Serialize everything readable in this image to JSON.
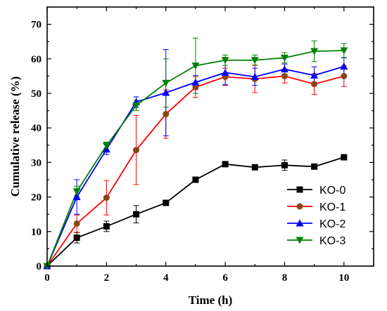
{
  "chart_data": {
    "type": "line",
    "xlabel": "Time (h)",
    "ylabel": "Cumulative release (%)",
    "xlim": [
      0,
      11
    ],
    "ylim": [
      0,
      75
    ],
    "xticks": [
      0,
      2,
      4,
      6,
      8,
      10
    ],
    "yticks": [
      0,
      10,
      20,
      30,
      40,
      50,
      60,
      70
    ],
    "x": [
      0,
      1,
      2,
      3,
      4,
      5,
      6,
      7,
      8,
      9,
      10
    ],
    "grid": false,
    "legend_position": "bottom-right",
    "series": [
      {
        "name": "KO-0",
        "color": "#000000",
        "marker": "square",
        "values": [
          0,
          8.2,
          11.5,
          15.0,
          18.3,
          25.0,
          29.5,
          28.6,
          29.2,
          28.8,
          31.5
        ],
        "errors": [
          0,
          1.5,
          1.5,
          2.5,
          0.5,
          0.5,
          0.5,
          0.5,
          1.5,
          0.5,
          0.5
        ]
      },
      {
        "name": "KO-1",
        "color": "#8B4513",
        "line_color": "#FF0000",
        "marker": "circle",
        "values": [
          0,
          12.3,
          19.8,
          33.6,
          44.0,
          51.8,
          54.8,
          54.2,
          55.0,
          52.7,
          55.0
        ],
        "errors": [
          0,
          2.5,
          5.0,
          10.0,
          7.0,
          3.0,
          2.5,
          4.0,
          2.0,
          3.0,
          3.0
        ]
      },
      {
        "name": "KO-2",
        "color": "#0000FF",
        "marker": "triangle-up",
        "values": [
          0,
          20.0,
          33.8,
          47.5,
          50.2,
          53.2,
          56.0,
          54.8,
          57.0,
          55.2,
          57.8
        ],
        "errors": [
          0,
          5.0,
          1.5,
          1.5,
          12.5,
          2.0,
          3.5,
          2.5,
          1.5,
          2.5,
          2.5
        ]
      },
      {
        "name": "KO-3",
        "color": "#008000",
        "marker": "triangle-down",
        "values": [
          0,
          21.6,
          34.9,
          46.5,
          53.0,
          58.0,
          59.6,
          59.6,
          60.3,
          62.2,
          62.4
        ],
        "errors": [
          0,
          1.5,
          1.0,
          1.5,
          7.0,
          8.0,
          1.5,
          1.5,
          1.5,
          3.0,
          2.0
        ]
      }
    ]
  }
}
